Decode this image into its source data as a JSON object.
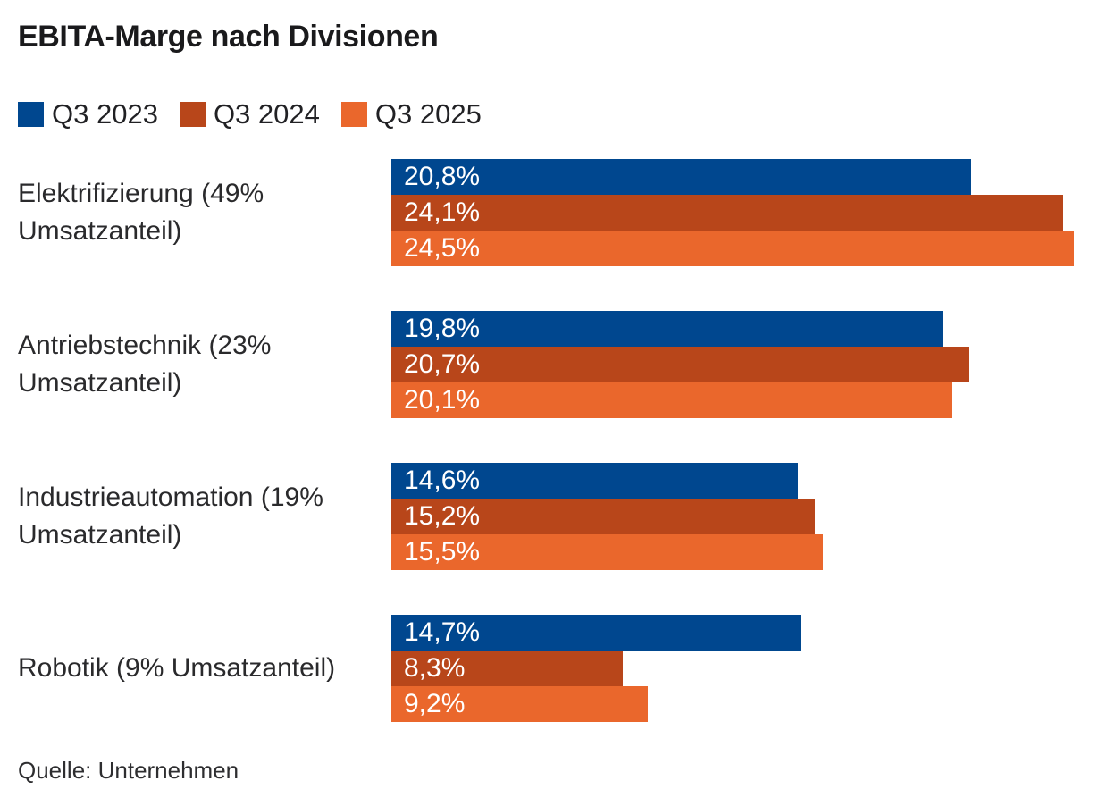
{
  "page": {
    "background_color": "#ffffff"
  },
  "header": {
    "title": "EBITA-Marge nach Divisionen"
  },
  "chart_data": {
    "type": "bar",
    "orientation": "horizontal",
    "title": "EBITA-Marge nach Divisionen",
    "categories": [
      "Elektrifizierung (49% Umsatzanteil)",
      "Antriebstechnik (23% Umsatzanteil)",
      "Industrieautomation (19% Umsatzanteil)",
      "Robotik (9% Umsatzanteil)"
    ],
    "series": [
      {
        "name": "Q3 2023",
        "color": "#00478F",
        "values": [
          20.8,
          19.8,
          14.6,
          14.7
        ],
        "value_labels": [
          "20,8%",
          "19,8%",
          "14,6%",
          "14,7%"
        ]
      },
      {
        "name": "Q3 2024",
        "color": "#B8461A",
        "values": [
          24.1,
          20.7,
          15.2,
          8.3
        ],
        "value_labels": [
          "24,1%",
          "20,7%",
          "15,2%",
          "8,3%"
        ]
      },
      {
        "name": "Q3 2025",
        "color": "#EA672C",
        "values": [
          24.5,
          20.1,
          15.5,
          9.2
        ],
        "value_labels": [
          "24,5%",
          "20,1%",
          "15,5%",
          "9,2%"
        ]
      }
    ],
    "xlabel": "",
    "ylabel": "",
    "xlim": [
      0,
      24.5
    ],
    "value_suffix": "%",
    "decimal_separator": ",",
    "grid": false,
    "axes_visible": false,
    "value_labels_position": "inside-start",
    "value_label_color": "#ffffff",
    "legend_position": "top"
  },
  "footer": {
    "source": "Quelle: Unternehmen"
  }
}
